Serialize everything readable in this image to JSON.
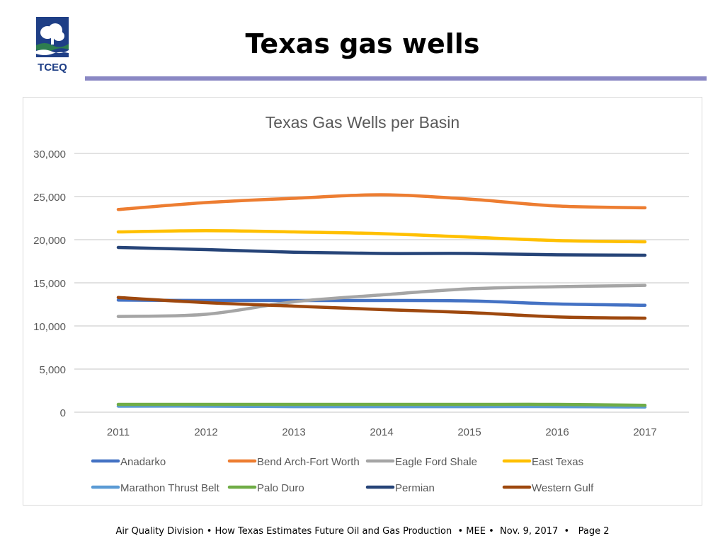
{
  "slide": {
    "title": "Texas gas wells",
    "logo_text": "TCEQ",
    "accent_color": "#8a88c4"
  },
  "footer": {
    "text": "Air Quality Division • How Texas Estimates Future Oil and Gas Production  • MEE •  Nov. 9, 2017  •   Page 2"
  },
  "chart_data": {
    "type": "line",
    "title": "Texas Gas Wells per Basin",
    "xlabel": "",
    "ylabel": "",
    "ylim": [
      0,
      30000
    ],
    "yticks": [
      0,
      5000,
      10000,
      15000,
      20000,
      25000,
      30000
    ],
    "ytick_labels": [
      "0",
      "5,000",
      "10,000",
      "15,000",
      "20,000",
      "25,000",
      "30,000"
    ],
    "x": [
      "2011",
      "2012",
      "2013",
      "2014",
      "2015",
      "2016",
      "2017"
    ],
    "grid": true,
    "legend_position": "bottom",
    "series": [
      {
        "name": "Anadarko",
        "color": "#4472c4",
        "values": [
          13000,
          12950,
          12950,
          12950,
          12900,
          12550,
          12400
        ]
      },
      {
        "name": "Bend Arch-Fort Worth",
        "color": "#ed7d31",
        "values": [
          23500,
          24300,
          24800,
          25200,
          24700,
          23900,
          23700
        ]
      },
      {
        "name": "Eagle Ford Shale",
        "color": "#a5a5a5",
        "values": [
          11100,
          11350,
          12800,
          13600,
          14300,
          14550,
          14700
        ]
      },
      {
        "name": "East Texas",
        "color": "#ffc000",
        "values": [
          20900,
          21050,
          20900,
          20700,
          20300,
          19900,
          19750
        ]
      },
      {
        "name": "Marathon Thrust Belt",
        "color": "#5b9bd5",
        "values": [
          700,
          700,
          650,
          650,
          650,
          650,
          600
        ]
      },
      {
        "name": "Palo Duro",
        "color": "#70ad47",
        "values": [
          900,
          900,
          900,
          900,
          900,
          900,
          800
        ]
      },
      {
        "name": "Permian",
        "color": "#264478",
        "values": [
          19100,
          18850,
          18550,
          18400,
          18400,
          18250,
          18200
        ]
      },
      {
        "name": "Western Gulf",
        "color": "#9e480e",
        "values": [
          13300,
          12700,
          12300,
          11900,
          11550,
          11050,
          10900
        ]
      }
    ]
  }
}
